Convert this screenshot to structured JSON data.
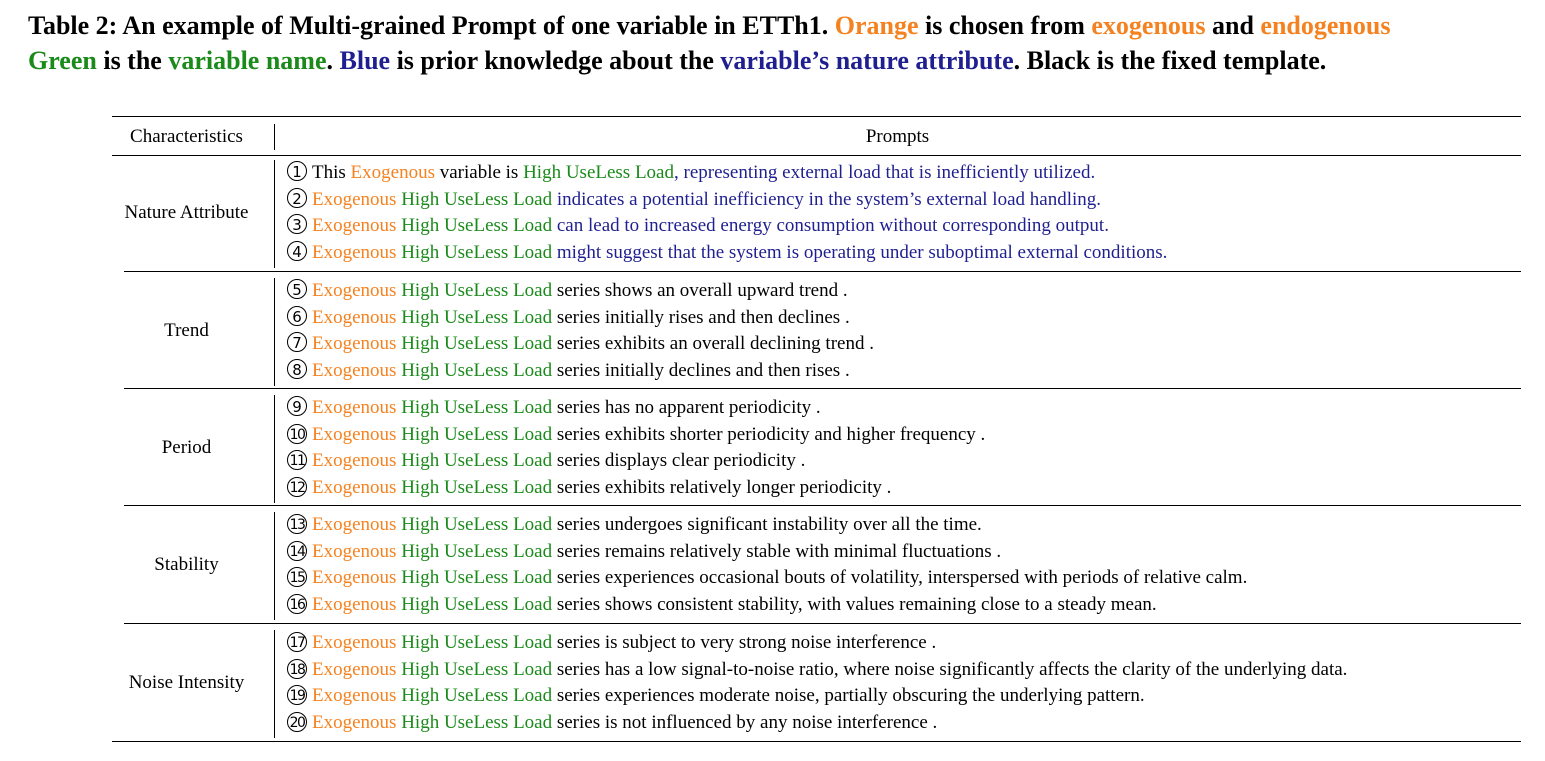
{
  "caption": {
    "line1": [
      {
        "text": "Table 2: An example of Multi-grained Prompt of one variable in ETTh1. ",
        "color": "black"
      },
      {
        "text": "Orange",
        "color": "orange"
      },
      {
        "text": " is chosen from ",
        "color": "black"
      },
      {
        "text": "exogenous",
        "color": "orange"
      },
      {
        "text": " and ",
        "color": "black"
      },
      {
        "text": "endogenous",
        "color": "orange"
      }
    ],
    "line2": [
      {
        "text": "Green",
        "color": "green"
      },
      {
        "text": " is the ",
        "color": "black"
      },
      {
        "text": "variable name",
        "color": "green"
      },
      {
        "text": ". ",
        "color": "black"
      },
      {
        "text": "Blue",
        "color": "blue"
      },
      {
        "text": " is prior knowledge about the ",
        "color": "black"
      },
      {
        "text": "variable’s nature attribute",
        "color": "blue"
      },
      {
        "text": ". Black is the fixed template.",
        "color": "black"
      }
    ]
  },
  "table": {
    "headers": {
      "characteristics": "Characteristics",
      "prompts": "Prompts"
    },
    "groups": [
      {
        "characteristic": "Nature Attribute",
        "rows": [
          {
            "num": "1",
            "segments": [
              {
                "text": "This ",
                "color": "black"
              },
              {
                "text": "Exogenous",
                "color": "orange"
              },
              {
                "text": " variable is ",
                "color": "black"
              },
              {
                "text": "High UseLess Load",
                "color": "green"
              },
              {
                "text": ", representing external load that is inefficiently utilized.",
                "color": "blue"
              }
            ]
          },
          {
            "num": "2",
            "segments": [
              {
                "text": "Exogenous",
                "color": "orange"
              },
              {
                "text": " High UseLess Load",
                "color": "green"
              },
              {
                "text": " indicates a potential inefficiency in the system’s external load handling.",
                "color": "blue"
              }
            ]
          },
          {
            "num": "3",
            "segments": [
              {
                "text": "Exogenous",
                "color": "orange"
              },
              {
                "text": " High UseLess Load",
                "color": "green"
              },
              {
                "text": " can lead to increased energy consumption without corresponding output.",
                "color": "blue"
              }
            ]
          },
          {
            "num": "4",
            "segments": [
              {
                "text": "Exogenous",
                "color": "orange"
              },
              {
                "text": " High UseLess Load",
                "color": "green"
              },
              {
                "text": " might suggest that the system is operating under suboptimal external conditions.",
                "color": "blue"
              }
            ]
          }
        ]
      },
      {
        "characteristic": "Trend",
        "rows": [
          {
            "num": "5",
            "segments": [
              {
                "text": "Exogenous",
                "color": "orange"
              },
              {
                "text": " High UseLess Load",
                "color": "green"
              },
              {
                "text": " series shows an overall upward trend .",
                "color": "black"
              }
            ]
          },
          {
            "num": "6",
            "segments": [
              {
                "text": "Exogenous",
                "color": "orange"
              },
              {
                "text": " High UseLess Load",
                "color": "green"
              },
              {
                "text": " series initially rises and then declines .",
                "color": "black"
              }
            ]
          },
          {
            "num": "7",
            "segments": [
              {
                "text": "Exogenous",
                "color": "orange"
              },
              {
                "text": " High UseLess Load",
                "color": "green"
              },
              {
                "text": " series exhibits an overall declining trend .",
                "color": "black"
              }
            ]
          },
          {
            "num": "8",
            "segments": [
              {
                "text": "Exogenous",
                "color": "orange"
              },
              {
                "text": " High UseLess Load",
                "color": "green"
              },
              {
                "text": " series initially declines and then rises .",
                "color": "black"
              }
            ]
          }
        ]
      },
      {
        "characteristic": "Period",
        "rows": [
          {
            "num": "9",
            "segments": [
              {
                "text": "Exogenous",
                "color": "orange"
              },
              {
                "text": " High UseLess Load",
                "color": "green"
              },
              {
                "text": " series has no apparent periodicity .",
                "color": "black"
              }
            ]
          },
          {
            "num": "10",
            "segments": [
              {
                "text": "Exogenous",
                "color": "orange"
              },
              {
                "text": " High UseLess Load",
                "color": "green"
              },
              {
                "text": " series exhibits shorter periodicity and higher frequency .",
                "color": "black"
              }
            ]
          },
          {
            "num": "11",
            "segments": [
              {
                "text": "Exogenous",
                "color": "orange"
              },
              {
                "text": " High UseLess Load",
                "color": "green"
              },
              {
                "text": " series displays clear periodicity .",
                "color": "black"
              }
            ]
          },
          {
            "num": "12",
            "segments": [
              {
                "text": "Exogenous",
                "color": "orange"
              },
              {
                "text": " High UseLess Load",
                "color": "green"
              },
              {
                "text": " series exhibits relatively longer periodicity .",
                "color": "black"
              }
            ]
          }
        ]
      },
      {
        "characteristic": "Stability",
        "rows": [
          {
            "num": "13",
            "segments": [
              {
                "text": "Exogenous",
                "color": "orange"
              },
              {
                "text": " High UseLess Load",
                "color": "green"
              },
              {
                "text": " series undergoes significant instability over all the time.",
                "color": "black"
              }
            ]
          },
          {
            "num": "14",
            "segments": [
              {
                "text": "Exogenous",
                "color": "orange"
              },
              {
                "text": " High UseLess Load",
                "color": "green"
              },
              {
                "text": " series remains relatively stable with minimal fluctuations .",
                "color": "black"
              }
            ]
          },
          {
            "num": "15",
            "segments": [
              {
                "text": "Exogenous",
                "color": "orange"
              },
              {
                "text": " High UseLess Load",
                "color": "green"
              },
              {
                "text": " series experiences occasional bouts of volatility, interspersed with periods of relative calm.",
                "color": "black"
              }
            ]
          },
          {
            "num": "16",
            "segments": [
              {
                "text": "Exogenous",
                "color": "orange"
              },
              {
                "text": " High UseLess Load",
                "color": "green"
              },
              {
                "text": " series shows consistent stability, with values remaining close to a steady mean.",
                "color": "black"
              }
            ]
          }
        ]
      },
      {
        "characteristic": "Noise Intensity",
        "rows": [
          {
            "num": "17",
            "segments": [
              {
                "text": "Exogenous",
                "color": "orange"
              },
              {
                "text": " High UseLess Load",
                "color": "green"
              },
              {
                "text": " series is subject to very strong noise interference .",
                "color": "black"
              }
            ]
          },
          {
            "num": "18",
            "segments": [
              {
                "text": "Exogenous",
                "color": "orange"
              },
              {
                "text": " High UseLess Load",
                "color": "green"
              },
              {
                "text": " series has a low signal-to-noise ratio, where noise significantly affects the clarity of the underlying data.",
                "color": "black"
              }
            ]
          },
          {
            "num": "19",
            "segments": [
              {
                "text": "Exogenous",
                "color": "orange"
              },
              {
                "text": " High UseLess Load",
                "color": "green"
              },
              {
                "text": " series experiences moderate noise, partially obscuring the underlying pattern.",
                "color": "black"
              }
            ]
          },
          {
            "num": "20",
            "segments": [
              {
                "text": "Exogenous",
                "color": "orange"
              },
              {
                "text": " High UseLess Load",
                "color": "green"
              },
              {
                "text": " series is not influenced by any noise interference .",
                "color": "black"
              }
            ]
          }
        ]
      }
    ]
  },
  "colors": {
    "orange": "#f58220",
    "green": "#1a8a1a",
    "blue": "#1f1f8f",
    "black": "#000000"
  }
}
